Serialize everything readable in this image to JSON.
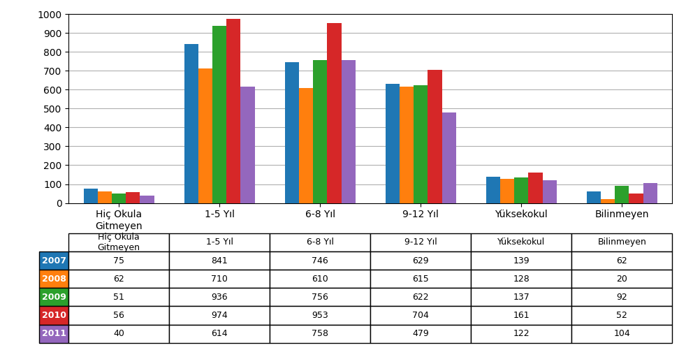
{
  "chart_data": {
    "type": "bar",
    "categories": [
      "Hiç Okula\nGitmeyen",
      "1-5 Yıl",
      "6-8 Yıl",
      "9-12 Yıl",
      "Yüksekokul",
      "Bilinmeyen"
    ],
    "series": [
      {
        "name": "2007",
        "values": [
          75,
          841,
          746,
          629,
          139,
          62
        ]
      },
      {
        "name": "2008",
        "values": [
          62,
          710,
          610,
          615,
          128,
          20
        ]
      },
      {
        "name": "2009",
        "values": [
          51,
          936,
          756,
          622,
          137,
          92
        ]
      },
      {
        "name": "2010",
        "values": [
          56,
          974,
          953,
          704,
          161,
          52
        ]
      },
      {
        "name": "2011",
        "values": [
          40,
          614,
          758,
          479,
          122,
          104
        ]
      }
    ],
    "ylim": [
      0,
      1000
    ],
    "yticks": [
      0,
      100,
      200,
      300,
      400,
      500,
      600,
      700,
      800,
      900,
      1000
    ],
    "grid": true,
    "data_labels": true
  }
}
